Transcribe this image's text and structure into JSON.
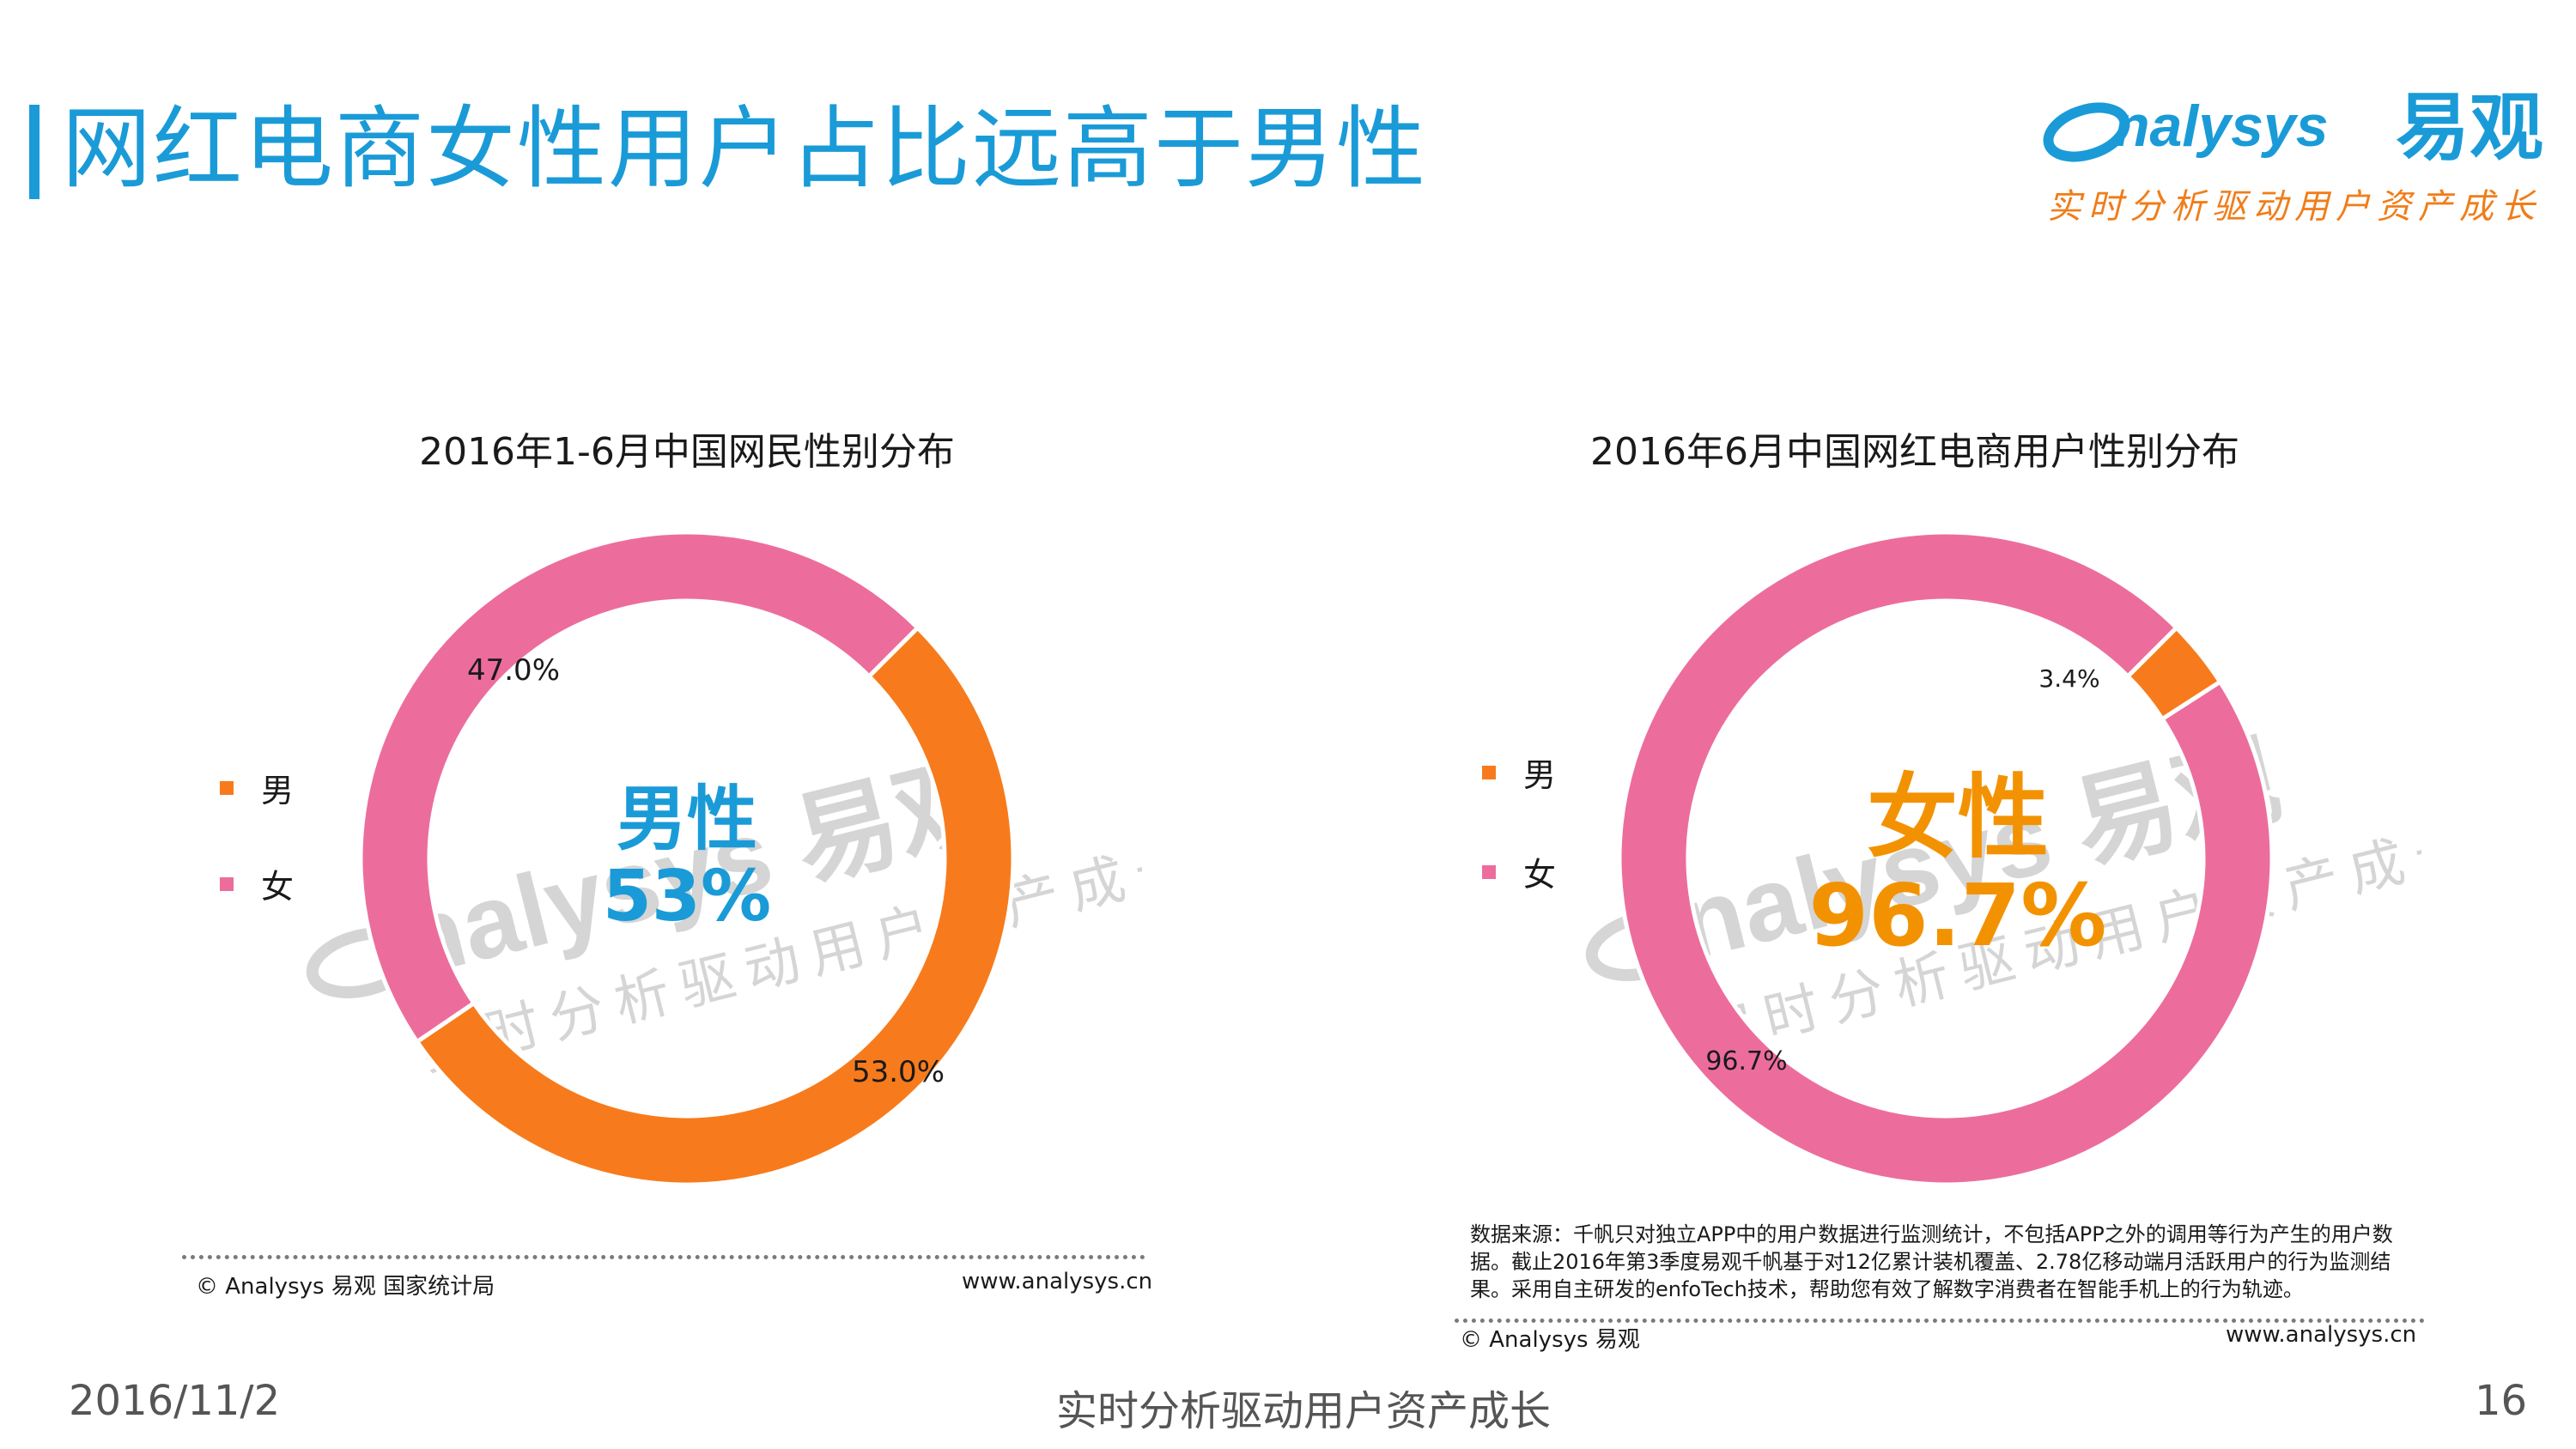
{
  "page": {
    "title": "网红电商女性用户占比远高于男性",
    "date": "2016/11/2",
    "footer_center": "实时分析驱动用户资产成长",
    "page_number": "16"
  },
  "logo": {
    "brand": "nalysys",
    "brand_cn": "易观",
    "slogan": "实时分析驱动用户资产成长"
  },
  "colors": {
    "accent": "#1a9bd7",
    "male": "#f77b1c",
    "female": "#ec6d9c",
    "highlight_orange": "#f39200"
  },
  "chart_data": [
    {
      "type": "donut",
      "title": "2016年1-6月中国网民性别分布",
      "categories": [
        "男",
        "女"
      ],
      "values": [
        53.0,
        47.0
      ],
      "value_labels": [
        "53.0%",
        "47.0%"
      ],
      "legend_placement": "left",
      "center_text": {
        "line1": "男性",
        "line2": "53%"
      }
    },
    {
      "type": "donut",
      "title": "2016年6月中国网红电商用户性别分布",
      "categories": [
        "男",
        "女"
      ],
      "values": [
        3.4,
        96.7
      ],
      "value_labels": [
        "3.4%",
        "96.7%"
      ],
      "legend_placement": "left",
      "center_text": {
        "line1": "女性",
        "line2": "96.7%"
      }
    }
  ],
  "footer_left": {
    "copyright": "© Analysys 易观 国家统计局",
    "website": "www.analysys.cn"
  },
  "footer_right": {
    "source_note": "数据来源：千帆只对独立APP中的用户数据进行监测统计，不包括APP之外的调用等行为产生的用户数据。截止2016年第3季度易观千帆基于对12亿累计装机覆盖、2.78亿移动端月活跃用户的行为监测结果。采用自主研发的enfoTech技术，帮助您有效了解数字消费者在智能手机上的行为轨迹。",
    "copyright": "© Analysys 易观",
    "website": "www.analysys.cn"
  },
  "watermark": {
    "brand": "nalysys 易观",
    "slogan": "实时分析驱动用户资产成长"
  }
}
